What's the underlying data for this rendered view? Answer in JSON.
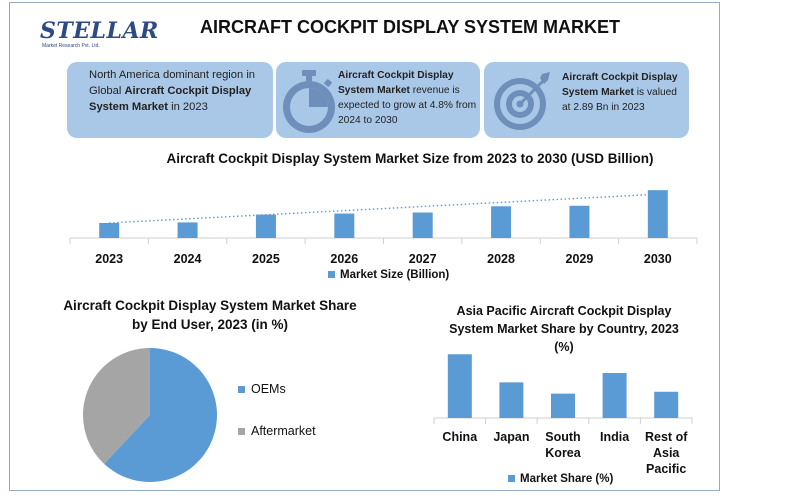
{
  "logo": {
    "word": "STELLAR",
    "sub": "Market Research Pvt. Ltd."
  },
  "title": "AIRCRAFT COCKPIT DISPLAY SYSTEM MARKET",
  "info": {
    "box1": {
      "pre": "North America dominant region in Global ",
      "bold": "Aircraft Cockpit Display System Market",
      "post": " in 2023"
    },
    "box2": {
      "bold": "Aircraft Cockpit Display System Market",
      "post": " revenue is expected to grow at 4.8% from 2024 to 2030"
    },
    "box3": {
      "bold": "Aircraft Cockpit Display System Market",
      "post": " is valued at 2.89 Bn in 2023"
    }
  },
  "colors": {
    "bar": "#5b9bd5",
    "gray": "#a5a5a5",
    "box": "#a9c8e8",
    "icon": "#6e8fb9"
  },
  "icons": {
    "box2": "stopwatch-icon",
    "box3": "target-icon"
  },
  "chart_data": [
    {
      "type": "bar",
      "title": "Aircraft Cockpit Display System Market Size from 2023 to 2030 (USD Billion)",
      "categories": [
        "2023",
        "2024",
        "2025",
        "2026",
        "2027",
        "2028",
        "2029",
        "2030"
      ],
      "series": [
        {
          "name": "Market Size (Billion)",
          "values": [
            2.89,
            3.0,
            4.5,
            4.7,
            4.9,
            6.1,
            6.2,
            9.2
          ]
        }
      ],
      "ylim": [
        0,
        10
      ],
      "trendline": "dotted",
      "legend": "bottom"
    },
    {
      "type": "pie",
      "title": "Aircraft Cockpit Display System Market Share by End User, 2023 (in %)",
      "labels": [
        "OEMs",
        "Aftermarket"
      ],
      "values": [
        62,
        38
      ],
      "legend": "right"
    },
    {
      "type": "bar",
      "title": "Asia Pacific Aircraft Cockpit Display System Market Share by Country, 2023 (%)",
      "categories": [
        "China",
        "Japan",
        "South Korea",
        "India",
        "Rest of Asia Pacific"
      ],
      "series": [
        {
          "name": "Market Share (%)",
          "values": [
            34,
            19,
            13,
            24,
            14
          ]
        }
      ],
      "ylim": [
        0,
        40
      ],
      "legend": "bottom"
    }
  ]
}
